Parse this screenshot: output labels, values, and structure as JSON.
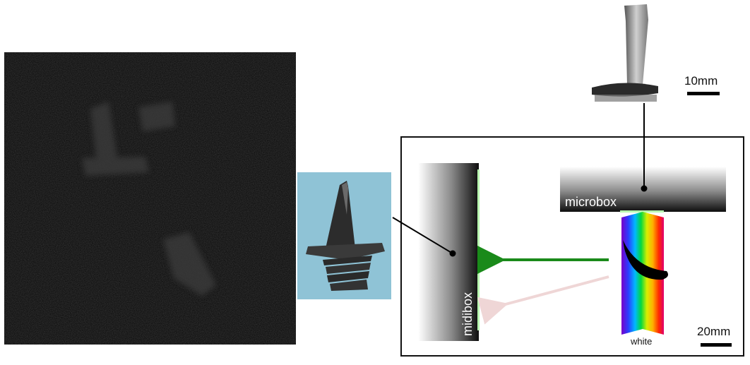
{
  "scale_top": {
    "label": "10mm"
  },
  "scale_bottom": {
    "label": "20mm"
  },
  "microbox": {
    "label": "microbox"
  },
  "midibox": {
    "label": "midibox"
  },
  "spectrum": {
    "label": "white"
  },
  "colors": {
    "green_beam": "#1a8a1a",
    "faint_beam": "#efd6d6",
    "detector_strip": "#b8f5b0",
    "photo_background": "#8fc3d6"
  }
}
